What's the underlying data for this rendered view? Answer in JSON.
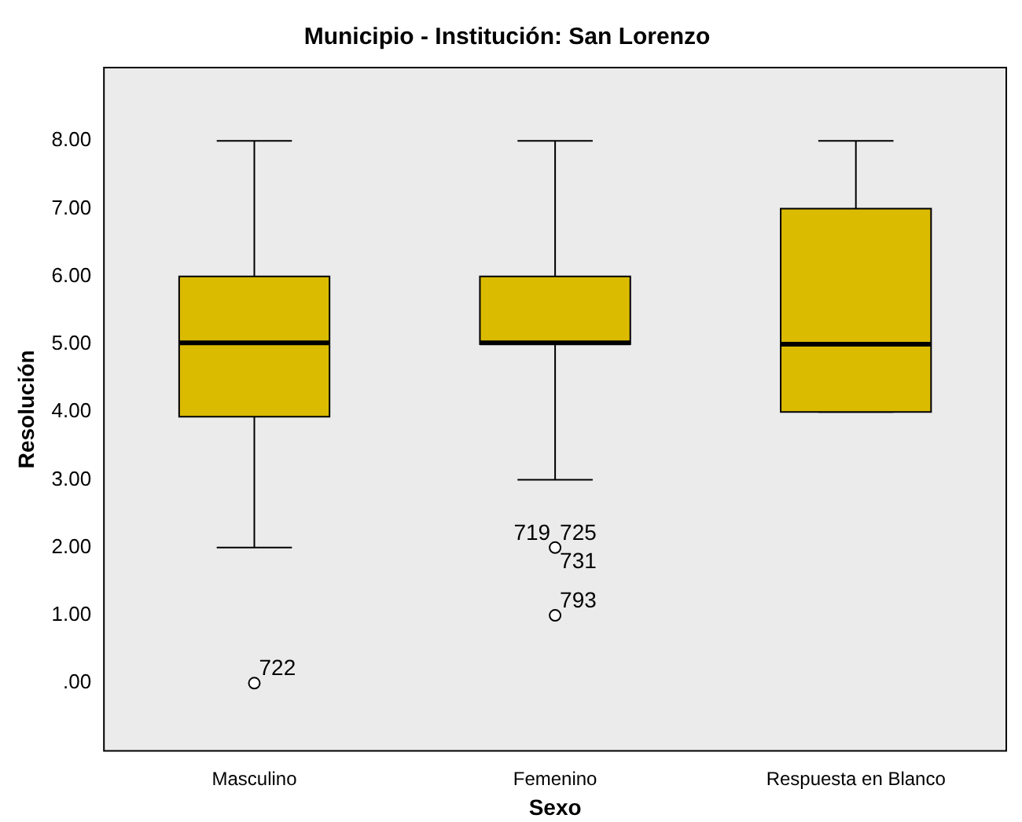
{
  "chart_data": {
    "type": "box",
    "title": "Municipio - Institución: San Lorenzo",
    "xlabel": "Sexo",
    "ylabel": "Resolución",
    "categories": [
      "Masculino",
      "Femenino",
      "Respuesta en Blanco"
    ],
    "series": [
      {
        "color": "#dbbb00",
        "boxes": [
          {
            "low": 2,
            "q1": 3.93,
            "median": 5.02,
            "q3": 6,
            "high": 8,
            "outliers": [
              0
            ]
          },
          {
            "low": 3,
            "q1": 5,
            "median": 5.02,
            "q3": 6,
            "high": 8,
            "outliers": [
              2,
              1
            ]
          },
          {
            "low": 4,
            "q1": 4,
            "median": 5,
            "q3": 7,
            "high": 8
          }
        ]
      }
    ],
    "ylim": [
      -1.0,
      9.08
    ],
    "yticks": [
      {
        "value": 0,
        "label": ".00"
      },
      {
        "value": 1,
        "label": "1.00"
      },
      {
        "value": 2,
        "label": "2.00"
      },
      {
        "value": 3,
        "label": "3.00"
      },
      {
        "value": 4,
        "label": "4.00"
      },
      {
        "value": 5,
        "label": "5.00"
      },
      {
        "value": 6,
        "label": "6.00"
      },
      {
        "value": 7,
        "label": "7.00"
      },
      {
        "value": 8,
        "label": "8.00"
      }
    ],
    "annotations": [
      "722",
      "719",
      "725",
      "731",
      "793"
    ],
    "grid": false,
    "legend": false
  }
}
